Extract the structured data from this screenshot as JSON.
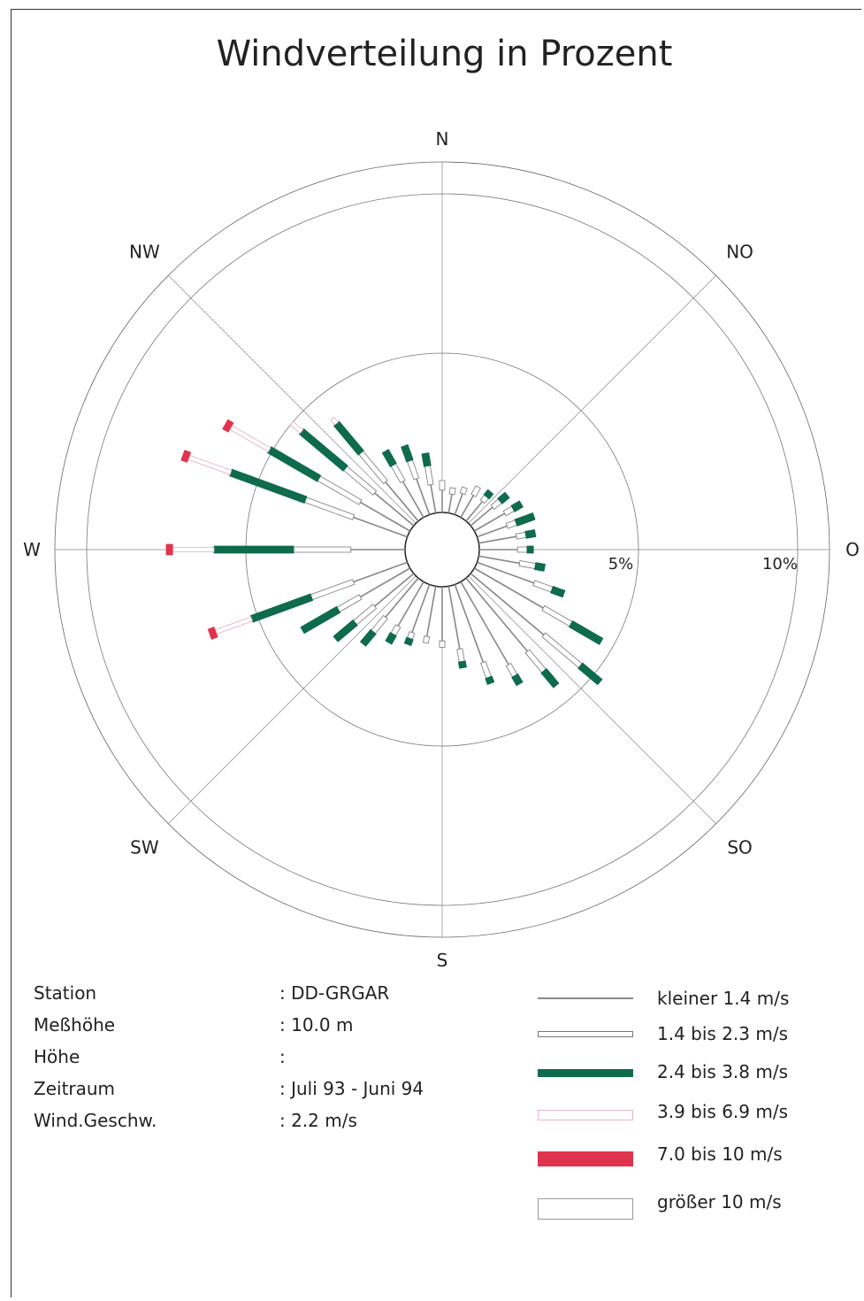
{
  "title": "Windverteilung in Prozent",
  "chart_data": {
    "type": "wind-rose",
    "title": "Windverteilung in Prozent",
    "directions": [
      "N",
      "NO",
      "O",
      "SO",
      "S",
      "SW",
      "W",
      "NW"
    ],
    "ring_labels": [
      "5%",
      "10%"
    ],
    "rmax_percent": 11,
    "speed_classes": [
      {
        "label": "kleiner 1.4 m/s",
        "color": "#888888",
        "style": "line"
      },
      {
        "label": "1.4 bis 2.3 m/s",
        "color": "#ffffff",
        "style": "outline"
      },
      {
        "label": "2.4 bis 3.8 m/s",
        "color": "#0e6b4c",
        "style": "fill"
      },
      {
        "label": "3.9 bis 6.9 m/s",
        "color": "#ffffff",
        "style": "outline-pink"
      },
      {
        "label": "7.0 bis 10 m/s",
        "color": "#e0344e",
        "style": "fill"
      },
      {
        "label": "größer 10 m/s",
        "color": "#ffffff",
        "style": "outline"
      }
    ],
    "sectors": [
      {
        "dir": 0,
        "segments": [
          0.7,
          0.3
        ]
      },
      {
        "dir": 10,
        "segments": [
          0.6,
          0.2
        ]
      },
      {
        "dir": 20,
        "segments": [
          0.7,
          0.2
        ]
      },
      {
        "dir": 30,
        "segments": [
          0.8,
          0.3
        ]
      },
      {
        "dir": 40,
        "segments": [
          0.8,
          0.2,
          0.2
        ]
      },
      {
        "dir": 50,
        "segments": [
          0.9,
          0.3,
          0.3
        ]
      },
      {
        "dir": 60,
        "segments": [
          1.1,
          0.3,
          0.3
        ]
      },
      {
        "dir": 70,
        "segments": [
          1.0,
          0.3,
          0.6
        ]
      },
      {
        "dir": 80,
        "segments": [
          1.2,
          0.3,
          0.3
        ]
      },
      {
        "dir": 90,
        "segments": [
          1.2,
          0.3,
          0.2
        ]
      },
      {
        "dir": 100,
        "segments": [
          1.3,
          0.5,
          0.3
        ]
      },
      {
        "dir": 110,
        "segments": [
          1.9,
          0.6,
          0.4
        ]
      },
      {
        "dir": 120,
        "segments": [
          2.5,
          1.0,
          1.1
        ]
      },
      {
        "dir": 130,
        "segments": [
          3.0,
          1.5,
          0.8
        ]
      },
      {
        "dir": 140,
        "segments": [
          3.0,
          0.8,
          0.6
        ]
      },
      {
        "dir": 150,
        "segments": [
          3.0,
          0.4,
          0.3
        ]
      },
      {
        "dir": 160,
        "segments": [
          2.6,
          0.5,
          0.2
        ]
      },
      {
        "dir": 170,
        "segments": [
          2.0,
          0.4,
          0.2
        ]
      },
      {
        "dir": 180,
        "segments": [
          1.7,
          0.2
        ]
      },
      {
        "dir": 190,
        "segments": [
          1.6,
          0.2
        ]
      },
      {
        "dir": 200,
        "segments": [
          1.6,
          0.2,
          0.2
        ]
      },
      {
        "dir": 210,
        "segments": [
          1.6,
          0.3,
          0.3
        ]
      },
      {
        "dir": 220,
        "segments": [
          1.6,
          0.6,
          0.5
        ]
      },
      {
        "dir": 230,
        "segments": [
          1.6,
          0.8,
          0.8
        ]
      },
      {
        "dir": 240,
        "segments": [
          1.8,
          0.8,
          1.3
        ]
      },
      {
        "dir": 250,
        "segments": [
          1.8,
          1.4,
          2.0,
          1.2,
          0.2
        ]
      },
      {
        "dir": 270,
        "segments": [
          1.7,
          1.8,
          2.5,
          1.3,
          0.2
        ]
      },
      {
        "dir": 290,
        "segments": [
          1.8,
          1.6,
          2.5,
          1.4,
          0.2
        ]
      },
      {
        "dir": 300,
        "segments": [
          1.8,
          1.5,
          1.8,
          1.4,
          0.2
        ]
      },
      {
        "dir": 310,
        "segments": [
          1.6,
          1.2,
          1.8,
          0.4
        ]
      },
      {
        "dir": 320,
        "segments": [
          1.6,
          1.2,
          1.2,
          0.2
        ]
      },
      {
        "dir": 330,
        "segments": [
          1.3,
          0.6,
          0.5
        ]
      },
      {
        "dir": 340,
        "segments": [
          1.2,
          0.6,
          0.5
        ]
      },
      {
        "dir": 350,
        "segments": [
          0.9,
          0.6,
          0.4
        ]
      }
    ]
  },
  "info": {
    "rows": [
      {
        "key": "Station",
        "value": ": DD-GRGAR"
      },
      {
        "key": "Meßhöhe",
        "value": ": 10.0 m"
      },
      {
        "key": "Höhe",
        "value": ":"
      },
      {
        "key": "Zeitraum",
        "value": ": Juli 93 - Juni 94"
      },
      {
        "key": "Wind.Geschw.",
        "value": ": 2.2 m/s"
      }
    ]
  },
  "legend": {
    "items": [
      {
        "label": "kleiner 1.4 m/s"
      },
      {
        "label": "1.4 bis 2.3 m/s"
      },
      {
        "label": "2.4 bis 3.8 m/s"
      },
      {
        "label": "3.9 bis 6.9 m/s"
      },
      {
        "label": "7.0 bis 10 m/s"
      },
      {
        "label": "größer 10 m/s"
      }
    ]
  }
}
